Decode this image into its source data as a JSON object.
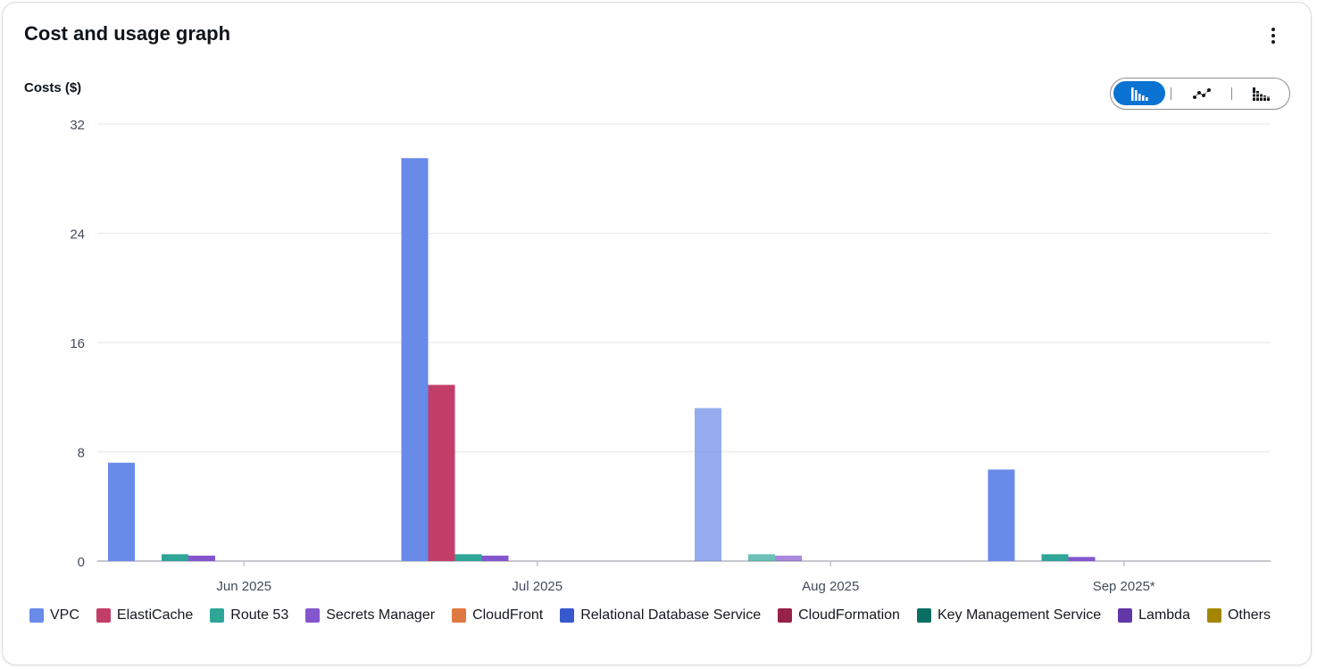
{
  "card": {
    "title": "Cost and usage graph",
    "more_icon": "vertical-ellipsis-icon"
  },
  "toggle": {
    "options": [
      {
        "icon": "grouped-bar-chart-icon",
        "selected": true
      },
      {
        "icon": "line-chart-icon",
        "selected": false
      },
      {
        "icon": "stacked-bar-chart-icon",
        "selected": false
      }
    ]
  },
  "colors": {
    "accent": "#0972d3"
  },
  "chart_data": {
    "type": "bar",
    "ylabel": "Costs ($)",
    "ylim": [
      0,
      32
    ],
    "yticks": [
      0,
      8,
      16,
      24,
      32
    ],
    "grid": true,
    "legend_position": "bottom",
    "categories": [
      "Jun 2025",
      "Jul 2025",
      "Aug 2025",
      "Sep 2025*"
    ],
    "series": [
      {
        "name": "VPC",
        "color": "#688ae8",
        "values": [
          7.2,
          29.5,
          11.2,
          6.7
        ]
      },
      {
        "name": "ElastiCache",
        "color": "#c33d69",
        "values": [
          0,
          12.9,
          0,
          0
        ]
      },
      {
        "name": "Route 53",
        "color": "#2ea597",
        "values": [
          0.5,
          0.5,
          0.5,
          0.5
        ]
      },
      {
        "name": "Secrets Manager",
        "color": "#8456ce",
        "values": [
          0.4,
          0.4,
          0.4,
          0.3
        ]
      },
      {
        "name": "CloudFront",
        "color": "#e07941",
        "values": [
          0,
          0,
          0,
          0
        ]
      },
      {
        "name": "Relational Database Service",
        "color": "#3759ce",
        "values": [
          0,
          0,
          0,
          0
        ]
      },
      {
        "name": "CloudFormation",
        "color": "#962249",
        "values": [
          0,
          0,
          0,
          0
        ]
      },
      {
        "name": "Key Management Service",
        "color": "#096f64",
        "values": [
          0,
          0,
          0,
          0
        ]
      },
      {
        "name": "Lambda",
        "color": "#6237a7",
        "values": [
          0,
          0,
          0,
          0
        ]
      },
      {
        "name": "Others",
        "color": "#a48500",
        "values": [
          0,
          0,
          0,
          0
        ]
      }
    ],
    "highlighted_category": "Aug 2025"
  }
}
